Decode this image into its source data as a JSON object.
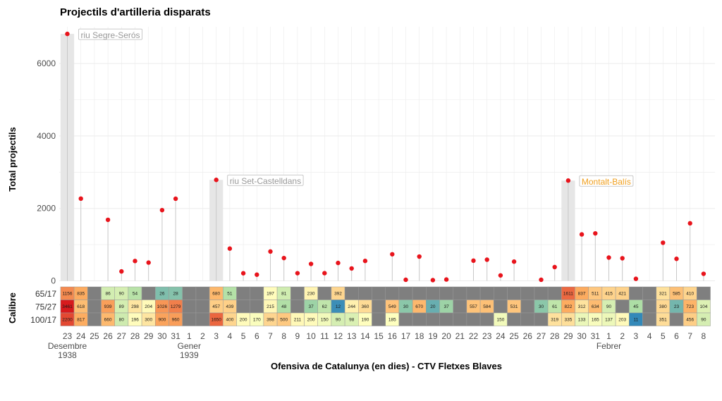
{
  "chart_data": {
    "type": "lollipop+heatmap",
    "title": "Projectils d'artilleria disparats",
    "ylabel": "Total projectils",
    "heatmap_ylabel": "Calibre",
    "xlabel": "Ofensiva de Catalunya (en dies) - CTV Fletxes Blaves",
    "ylim": [
      0,
      6900
    ],
    "yticks": [
      0,
      2000,
      4000,
      6000
    ],
    "days": [
      "23",
      "24",
      "25",
      "26",
      "27",
      "28",
      "29",
      "30",
      "31",
      "1",
      "2",
      "3",
      "4",
      "5",
      "6",
      "7",
      "8",
      "9",
      "10",
      "11",
      "12",
      "13",
      "14",
      "15",
      "16",
      "17",
      "18",
      "19",
      "20",
      "21",
      "22",
      "23",
      "24",
      "25",
      "26",
      "27",
      "28",
      "29",
      "30",
      "31",
      "1",
      "2",
      "3",
      "4",
      "5",
      "6",
      "7",
      "8"
    ],
    "month_labels": [
      {
        "index": 0,
        "month": "Desembre",
        "year": "1938"
      },
      {
        "index": 9,
        "month": "Gener",
        "year": "1939"
      },
      {
        "index": 40,
        "month": "Febrer",
        "year": ""
      }
    ],
    "totals": [
      6817,
      2270,
      null,
      1685,
      260,
      548,
      504,
      1952,
      2267,
      null,
      null,
      2787,
      891,
      209,
      170,
      810,
      629,
      211,
      467,
      212,
      494,
      342,
      550,
      null,
      734,
      30,
      670,
      20,
      37,
      null,
      557,
      584,
      150,
      531,
      null,
      30,
      380,
      2768,
      1282,
      1310,
      642,
      624,
      56,
      null,
      1052,
      608,
      1589,
      194
    ],
    "highlights": [
      {
        "index": 0,
        "label": "riu Segre-Serós",
        "color": "#999999"
      },
      {
        "index": 11,
        "label": "riu Set-Castelldans",
        "color": "#999999"
      },
      {
        "index": 37,
        "label": "Montalt-Balís",
        "color": "#f0a020"
      }
    ],
    "calibres": [
      "65/17",
      "75/27",
      "100/17"
    ],
    "heatmap": {
      "65/17": [
        1156,
        835,
        null,
        86,
        90,
        54,
        null,
        26,
        28,
        null,
        null,
        680,
        51,
        null,
        null,
        197,
        81,
        null,
        230,
        null,
        392,
        null,
        null,
        null,
        null,
        null,
        null,
        null,
        null,
        null,
        null,
        null,
        null,
        null,
        null,
        null,
        null,
        1611,
        837,
        511,
        415,
        421,
        null,
        null,
        321,
        585,
        410,
        null
      ],
      "75/27": [
        3461,
        618,
        null,
        939,
        89,
        298,
        204,
        1026,
        1279,
        null,
        null,
        457,
        439,
        null,
        null,
        215,
        48,
        null,
        37,
        62,
        12,
        244,
        360,
        null,
        549,
        30,
        670,
        20,
        37,
        null,
        557,
        584,
        null,
        531,
        null,
        30,
        61,
        822,
        312,
        634,
        90,
        null,
        45,
        null,
        380,
        23,
        723,
        104
      ],
      "100/17": [
        2200,
        817,
        null,
        660,
        80,
        196,
        300,
        900,
        960,
        null,
        null,
        1650,
        400,
        200,
        170,
        398,
        500,
        211,
        200,
        150,
        90,
        98,
        190,
        null,
        185,
        null,
        null,
        null,
        null,
        null,
        null,
        null,
        150,
        null,
        null,
        null,
        319,
        335,
        133,
        165,
        137,
        203,
        11,
        null,
        351,
        null,
        456,
        90
      ]
    },
    "colors": {
      "point": "#e8141c",
      "stem": "#c8c8c8",
      "highlight_band": "#e6e6e6",
      "na_cell": "#7f7f7f",
      "grid": "#ebebeb",
      "scale": [
        "#2b83ba",
        "#abdda4",
        "#ffffbf",
        "#fdae61",
        "#d7191c"
      ]
    }
  }
}
